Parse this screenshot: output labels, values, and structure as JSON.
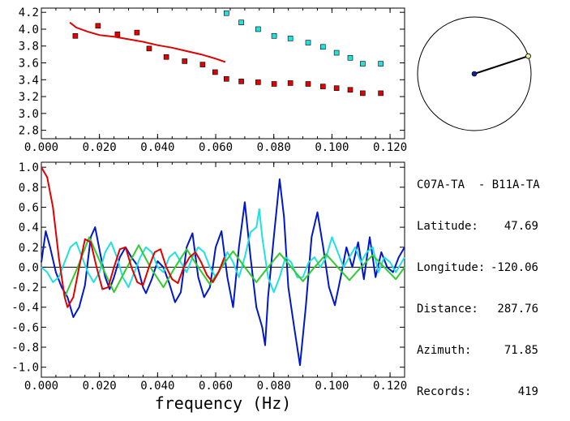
{
  "colors": {
    "red": "#e00000",
    "blue": "#0018c8",
    "cyan": "#20e0e0",
    "green": "#30cc30",
    "axis": "#000000",
    "dot_center": "#1020a0",
    "dot_edge": "#f0f090"
  },
  "station": {
    "pair": "C07A-TA  - B11A-TA",
    "rows": [
      {
        "key": "Latitude:",
        "value": "47.69"
      },
      {
        "key": "Longitude:",
        "value": "-120.06"
      },
      {
        "key": "Distance:",
        "value": "287.76"
      },
      {
        "key": "Azimuth:",
        "value": "71.85"
      },
      {
        "key": "Records:",
        "value": "419"
      }
    ]
  },
  "azimuth_deg": 71.85,
  "chart_data": [
    {
      "type": "scatter",
      "xlim": [
        0.0,
        0.125
      ],
      "ylim": [
        2.7,
        4.25
      ],
      "x_ticks": [
        "0.000",
        "0.020",
        "0.040",
        "0.060",
        "0.080",
        "0.100",
        "0.120"
      ],
      "y_ticks": [
        "2.8",
        "3.0",
        "3.2",
        "3.4",
        "3.6",
        "3.8",
        "4.0",
        "4.2"
      ],
      "series": [
        {
          "marker": "square",
          "color": "red",
          "points": [
            [
              0.0117,
              3.92
            ],
            [
              0.0195,
              4.04
            ],
            [
              0.0262,
              3.94
            ],
            [
              0.0329,
              3.96
            ],
            [
              0.0371,
              3.77
            ],
            [
              0.043,
              3.67
            ],
            [
              0.0493,
              3.62
            ],
            [
              0.0555,
              3.58
            ],
            [
              0.0598,
              3.49
            ],
            [
              0.0637,
              3.41
            ],
            [
              0.0688,
              3.38
            ],
            [
              0.0746,
              3.37
            ],
            [
              0.0801,
              3.35
            ],
            [
              0.0857,
              3.36
            ],
            [
              0.0918,
              3.35
            ],
            [
              0.0969,
              3.32
            ],
            [
              0.1016,
              3.3
            ],
            [
              0.1063,
              3.28
            ],
            [
              0.1106,
              3.24
            ],
            [
              0.1168,
              3.24
            ]
          ]
        },
        {
          "marker": "square",
          "color": "cyan",
          "points": [
            [
              0.0637,
              4.19
            ],
            [
              0.0688,
              4.08
            ],
            [
              0.0746,
              4.0
            ],
            [
              0.0801,
              3.92
            ],
            [
              0.0857,
              3.89
            ],
            [
              0.0918,
              3.84
            ],
            [
              0.0969,
              3.79
            ],
            [
              0.1016,
              3.72
            ],
            [
              0.1063,
              3.66
            ],
            [
              0.1106,
              3.59
            ],
            [
              0.1168,
              3.59
            ]
          ]
        },
        {
          "marker": "line",
          "color": "red",
          "points": [
            [
              0.0098,
              4.08
            ],
            [
              0.012,
              4.02
            ],
            [
              0.016,
              3.97
            ],
            [
              0.02,
              3.93
            ],
            [
              0.025,
              3.91
            ],
            [
              0.03,
              3.88
            ],
            [
              0.035,
              3.85
            ],
            [
              0.04,
              3.81
            ],
            [
              0.045,
              3.78
            ],
            [
              0.05,
              3.74
            ],
            [
              0.055,
              3.7
            ],
            [
              0.06,
              3.65
            ],
            [
              0.0633,
              3.61
            ]
          ]
        }
      ]
    },
    {
      "type": "line",
      "xlabel": "frequency (Hz)",
      "xlim": [
        0.0,
        0.125
      ],
      "ylim": [
        -1.1,
        1.05
      ],
      "x_ticks": [
        "0.000",
        "0.020",
        "0.040",
        "0.060",
        "0.080",
        "0.100",
        "0.120"
      ],
      "y_ticks": [
        "-1.0",
        "-0.8",
        "-0.6",
        "-0.4",
        "-0.2",
        "0.0",
        "0.2",
        "0.4",
        "0.6",
        "0.8",
        "1.0"
      ],
      "series": [
        {
          "color": "blue",
          "x": [
            0,
            0.0015,
            0.003,
            0.005,
            0.007,
            0.009,
            0.011,
            0.013,
            0.015,
            0.017,
            0.0185,
            0.0205,
            0.022,
            0.0235,
            0.025,
            0.027,
            0.029,
            0.031,
            0.033,
            0.035,
            0.036,
            0.038,
            0.04,
            0.042,
            0.044,
            0.046,
            0.048,
            0.05,
            0.052,
            0.054,
            0.056,
            0.058,
            0.06,
            0.062,
            0.064,
            0.066,
            0.068,
            0.07,
            0.072,
            0.074,
            0.076,
            0.077,
            0.078,
            0.08,
            0.082,
            0.0835,
            0.085,
            0.087,
            0.089,
            0.091,
            0.093,
            0.095,
            0.097,
            0.099,
            0.101,
            0.103,
            0.105,
            0.107,
            0.109,
            0.111,
            0.113,
            0.115,
            0.117,
            0.119,
            0.121,
            0.123,
            0.125
          ],
          "y": [
            0.05,
            0.36,
            0.2,
            -0.05,
            -0.2,
            -0.3,
            -0.5,
            -0.4,
            -0.18,
            0.3,
            0.4,
            0.1,
            -0.1,
            -0.22,
            -0.1,
            0.1,
            0.2,
            0.1,
            0.02,
            -0.2,
            -0.26,
            -0.12,
            0.06,
            0.0,
            -0.16,
            -0.35,
            -0.25,
            0.2,
            0.34,
            -0.1,
            -0.3,
            -0.2,
            0.2,
            0.36,
            -0.1,
            -0.4,
            0.2,
            0.65,
            0.1,
            -0.4,
            -0.6,
            -0.78,
            -0.3,
            0.3,
            0.88,
            0.5,
            -0.2,
            -0.6,
            -0.98,
            -0.4,
            0.3,
            0.55,
            0.2,
            -0.2,
            -0.38,
            -0.1,
            0.2,
            0.0,
            0.25,
            -0.12,
            0.3,
            -0.1,
            0.15,
            0.0,
            -0.05,
            0.1,
            0.2
          ]
        },
        {
          "color": "cyan",
          "x": [
            0,
            0.002,
            0.004,
            0.006,
            0.008,
            0.01,
            0.012,
            0.014,
            0.016,
            0.018,
            0.02,
            0.022,
            0.024,
            0.026,
            0.028,
            0.03,
            0.032,
            0.034,
            0.036,
            0.038,
            0.04,
            0.042,
            0.044,
            0.046,
            0.048,
            0.05,
            0.052,
            0.054,
            0.056,
            0.058,
            0.06,
            0.062,
            0.064,
            0.066,
            0.068,
            0.07,
            0.072,
            0.074,
            0.075,
            0.076,
            0.078,
            0.08,
            0.082,
            0.084,
            0.086,
            0.088,
            0.09,
            0.092,
            0.094,
            0.096,
            0.098,
            0.1,
            0.102,
            0.104,
            0.106,
            0.108,
            0.11,
            0.112,
            0.114,
            0.116,
            0.118,
            0.12,
            0.122,
            0.124,
            0.125
          ],
          "y": [
            0.0,
            -0.05,
            -0.15,
            -0.1,
            0.05,
            0.2,
            0.25,
            0.1,
            -0.05,
            -0.15,
            -0.05,
            0.15,
            0.25,
            0.1,
            -0.1,
            -0.2,
            -0.05,
            0.1,
            0.2,
            0.15,
            0.0,
            -0.05,
            0.1,
            0.15,
            0.05,
            -0.05,
            0.1,
            0.2,
            0.15,
            0.0,
            -0.1,
            0.0,
            0.15,
            0.05,
            -0.1,
            0.1,
            0.35,
            0.4,
            0.58,
            0.3,
            -0.1,
            -0.25,
            -0.1,
            0.1,
            0.05,
            -0.1,
            -0.1,
            0.05,
            0.1,
            0.0,
            0.1,
            0.3,
            0.15,
            0.0,
            0.1,
            0.2,
            0.05,
            0.15,
            0.2,
            -0.05,
            0.1,
            0.05,
            -0.05,
            0.05,
            0.1
          ]
        },
        {
          "color": "green",
          "x": [
            0.008,
            0.0125,
            0.0165,
            0.021,
            0.025,
            0.0295,
            0.0335,
            0.0375,
            0.042,
            0.046,
            0.05,
            0.054,
            0.058,
            0.062,
            0.066,
            0.07,
            0.074,
            0.078,
            0.082,
            0.086,
            0.09,
            0.094,
            0.098,
            0.102,
            0.106,
            0.11,
            0.114,
            0.118,
            0.122,
            0.125
          ],
          "y": [
            -0.3,
            0.0,
            0.3,
            0.0,
            -0.25,
            0.0,
            0.22,
            0.0,
            -0.2,
            0.0,
            0.18,
            0.0,
            -0.17,
            0.0,
            0.16,
            0.0,
            -0.15,
            0.0,
            0.14,
            0.0,
            -0.14,
            0.0,
            0.13,
            0.0,
            -0.13,
            0.0,
            0.12,
            0.0,
            -0.12,
            0.0
          ]
        },
        {
          "color": "red",
          "x": [
            0.0,
            0.002,
            0.004,
            0.006,
            0.008,
            0.009,
            0.011,
            0.013,
            0.015,
            0.017,
            0.019,
            0.021,
            0.023,
            0.025,
            0.027,
            0.029,
            0.031,
            0.033,
            0.035,
            0.037,
            0.039,
            0.041,
            0.043,
            0.045,
            0.047,
            0.049,
            0.051,
            0.053,
            0.055,
            0.057,
            0.059,
            0.061,
            0.063
          ],
          "y": [
            1.0,
            0.9,
            0.6,
            0.1,
            -0.3,
            -0.4,
            -0.3,
            0.0,
            0.28,
            0.25,
            0.0,
            -0.22,
            -0.2,
            0.0,
            0.18,
            0.2,
            0.0,
            -0.15,
            -0.18,
            0.0,
            0.15,
            0.18,
            0.0,
            -0.12,
            -0.16,
            0.0,
            0.1,
            0.15,
            0.05,
            -0.08,
            -0.15,
            -0.05,
            0.1
          ]
        }
      ]
    }
  ]
}
